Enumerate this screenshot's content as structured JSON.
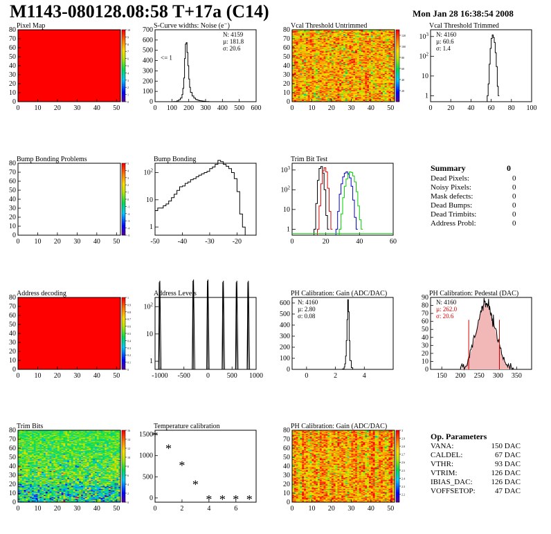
{
  "header": {
    "title": "M1143-080128.08:58 T+17a (C14)",
    "date": "Mon Jan 28 16:38:54 2008"
  },
  "summary": {
    "title": "Summary",
    "value": "0",
    "rows": [
      {
        "label": "Dead Pixels:",
        "value": "0"
      },
      {
        "label": "Noisy Pixels:",
        "value": "0"
      },
      {
        "label": "Mask defects:",
        "value": "0"
      },
      {
        "label": "Dead Bumps:",
        "value": "0"
      },
      {
        "label": "Dead Trimbits:",
        "value": "0"
      },
      {
        "label": "Address Probl:",
        "value": "0"
      }
    ]
  },
  "op_parameters": {
    "title": "Op. Parameters",
    "rows": [
      {
        "label": "VANA:",
        "value": "150 DAC"
      },
      {
        "label": "CALDEL:",
        "value": "67 DAC"
      },
      {
        "label": "VTHR:",
        "value": "93 DAC"
      },
      {
        "label": "VTRIM:",
        "value": "126 DAC"
      },
      {
        "label": "IBIAS_DAC:",
        "value": "126 DAC"
      },
      {
        "label": "VOFFSETOP:",
        "value": "47 DAC"
      }
    ]
  },
  "chart_data": [
    {
      "id": "pixel-map",
      "type": "heatmap",
      "title": "Pixel Map",
      "xlim": [
        0,
        52
      ],
      "ylim": [
        0,
        80
      ],
      "xticks": [
        "0",
        "10",
        "20",
        "30",
        "40",
        "50"
      ],
      "yticks": [
        "0",
        "10",
        "20",
        "30",
        "40",
        "50",
        "60",
        "70",
        "80"
      ],
      "uniform_value": 10,
      "zlim": [
        0,
        10
      ],
      "palette": "rainbow",
      "zticks": [
        "0",
        "1",
        "2",
        "3",
        "4",
        "5",
        "6",
        "7",
        "8",
        "9",
        "10"
      ]
    },
    {
      "id": "scurve-noise",
      "type": "histogram",
      "title": "S-Curve widths: Noise (e⁻)",
      "xlim": [
        0,
        600
      ],
      "ylim": [
        0,
        700
      ],
      "xticks": [
        "0",
        "100",
        "200",
        "300",
        "400",
        "500",
        "600"
      ],
      "yticks": [
        "0",
        "100",
        "200",
        "300",
        "400",
        "500",
        "600",
        "700"
      ],
      "stats": [
        {
          "text": "N: 4159"
        },
        {
          "text": "µ: 181.8"
        },
        {
          "text": "σ: 20.6"
        }
      ],
      "annotation": "<= 1",
      "x": [
        80,
        110,
        130,
        140,
        150,
        160,
        165,
        170,
        175,
        180,
        185,
        190,
        195,
        200,
        205,
        210,
        220,
        230,
        240,
        250,
        260,
        270,
        280,
        290,
        300,
        320
      ],
      "y": [
        0,
        2,
        8,
        18,
        35,
        70,
        130,
        230,
        420,
        560,
        575,
        480,
        350,
        220,
        140,
        90,
        55,
        35,
        22,
        15,
        10,
        8,
        6,
        4,
        2,
        0
      ]
    },
    {
      "id": "vcal-untrimmed",
      "type": "heatmap",
      "title": "Vcal Threshold Untrimmed",
      "xlim": [
        0,
        52
      ],
      "ylim": [
        0,
        80
      ],
      "xticks": [
        "0",
        "10",
        "20",
        "30",
        "40",
        "50"
      ],
      "yticks": [
        "0",
        "10",
        "20",
        "30",
        "40",
        "50",
        "60",
        "70",
        "80"
      ],
      "zlim": [
        0,
        130
      ],
      "palette": "rainbow",
      "zticks": [
        "20",
        "40",
        "60",
        "80",
        "100",
        "120"
      ],
      "mean": 100,
      "spread": 18
    },
    {
      "id": "vcal-trimmed",
      "type": "histogram",
      "title": "Vcal Threshold Trimmed",
      "xlim": [
        0,
        100
      ],
      "yscale": "log",
      "xticks": [
        "0",
        "20",
        "40",
        "60",
        "80",
        "100"
      ],
      "yticks": [
        "1",
        "10",
        "10²",
        "10³"
      ],
      "stats": [
        {
          "text": "N: 4160"
        },
        {
          "text": "µ: 60.6"
        },
        {
          "text": "σ:  1.4"
        }
      ],
      "x": [
        56,
        57,
        58,
        59,
        60,
        61,
        62,
        63,
        64,
        65,
        66,
        67
      ],
      "y": [
        1,
        4,
        40,
        250,
        800,
        1200,
        900,
        500,
        150,
        30,
        3,
        1
      ]
    },
    {
      "id": "bump-bonding-problems",
      "type": "heatmap",
      "title": "Bump Bonding Problems",
      "xlim": [
        0,
        52
      ],
      "ylim": [
        0,
        80
      ],
      "xticks": [
        "0",
        "10",
        "20",
        "30",
        "40",
        "50"
      ],
      "yticks": [
        "0",
        "10",
        "20",
        "30",
        "40",
        "50",
        "60",
        "70",
        "80"
      ],
      "empty": true,
      "zlim": [
        -5,
        5
      ],
      "palette": "rainbow",
      "zticks": [
        "-5",
        "-4",
        "-3",
        "-2",
        "-1",
        "0",
        "1",
        "2",
        "3",
        "4",
        "5"
      ]
    },
    {
      "id": "bump-bonding",
      "type": "histogram",
      "title": "Bump Bonding",
      "xlim": [
        -50,
        -13
      ],
      "yscale": "log",
      "xticks": [
        "-50",
        "-40",
        "-30",
        "-20"
      ],
      "yticks": [
        "1",
        "10",
        "10²"
      ],
      "x": [
        -50,
        -49,
        -48,
        -47,
        -46,
        -45,
        -44,
        -43,
        -42,
        -41,
        -40,
        -39,
        -38,
        -37,
        -36,
        -35,
        -34,
        -33,
        -32,
        -31,
        -30,
        -29,
        -28,
        -27,
        -26,
        -25,
        -24,
        -23,
        -22,
        -21,
        -20,
        -19,
        -18,
        -17
      ],
      "y": [
        4,
        5,
        5,
        6,
        7,
        9,
        12,
        16,
        22,
        30,
        32,
        40,
        45,
        55,
        60,
        70,
        80,
        90,
        100,
        110,
        140,
        160,
        200,
        280,
        250,
        200,
        170,
        140,
        100,
        60,
        20,
        3,
        1,
        0.5
      ]
    },
    {
      "id": "trim-bit-test",
      "type": "line",
      "title": "Trim Bit Test",
      "xlim": [
        0,
        60
      ],
      "yscale": "log",
      "xticks": [
        "0",
        "20",
        "40",
        "60"
      ],
      "yticks": [
        "1",
        "10",
        "10²",
        "10³"
      ],
      "series": [
        {
          "color": "#000000",
          "x": [
            13,
            14,
            15,
            16,
            17,
            18,
            19,
            20,
            21
          ],
          "y": [
            1,
            20,
            300,
            1200,
            1500,
            700,
            100,
            5,
            1
          ]
        },
        {
          "color": "#dd0000",
          "x": [
            15,
            16,
            17,
            18,
            19,
            20,
            21,
            22,
            23
          ],
          "y": [
            1,
            15,
            200,
            900,
            1300,
            800,
            120,
            8,
            1
          ]
        },
        {
          "color": "#0000cc",
          "x": [
            26,
            27,
            28,
            29,
            30,
            31,
            32,
            33,
            34,
            35,
            36,
            37,
            38
          ],
          "y": [
            1,
            8,
            60,
            200,
            450,
            700,
            800,
            650,
            400,
            150,
            30,
            4,
            1
          ]
        },
        {
          "color": "#00cc00",
          "x": [
            28,
            29,
            30,
            31,
            32,
            33,
            34,
            35,
            36,
            37,
            38,
            39,
            40,
            41
          ],
          "y": [
            1,
            6,
            40,
            150,
            350,
            600,
            800,
            750,
            500,
            250,
            80,
            15,
            3,
            1
          ]
        }
      ]
    },
    {
      "id": "address-decoding",
      "type": "heatmap",
      "title": "Address decoding",
      "xlim": [
        0,
        52
      ],
      "ylim": [
        0,
        80
      ],
      "xticks": [
        "0",
        "10",
        "20",
        "30",
        "40",
        "50"
      ],
      "yticks": [
        "0",
        "10",
        "20",
        "30",
        "40",
        "50",
        "60",
        "70",
        "80"
      ],
      "uniform_value": 1,
      "zlim": [
        0,
        1
      ],
      "palette": "rainbow",
      "zticks": [
        "0",
        "0.1",
        "0.2",
        "0.3",
        "0.4",
        "0.5",
        "0.6",
        "0.7",
        "0.8",
        "0.9",
        "1"
      ]
    },
    {
      "id": "address-levels",
      "type": "histogram",
      "title": "Address Levels",
      "xlim": [
        -1100,
        1000
      ],
      "yscale": "log",
      "xticks": [
        "-1000",
        "-500",
        "0",
        "500",
        "1000"
      ],
      "yticks": [
        "1",
        "10",
        "10²"
      ],
      "peaks": [
        {
          "x": -1000,
          "h": 900
        },
        {
          "x": -300,
          "h": 1000
        },
        {
          "x": 0,
          "h": 1000
        },
        {
          "x": 320,
          "h": 900
        },
        {
          "x": 600,
          "h": 900
        },
        {
          "x": 840,
          "h": 900
        }
      ]
    },
    {
      "id": "ph-gain",
      "type": "histogram",
      "title": "PH Calibration: Gain (ADC/DAC)",
      "xlim": [
        -1,
        6
      ],
      "ylim": [
        0,
        650
      ],
      "xticks": [
        "0",
        "2",
        "4"
      ],
      "yticks": [
        "0",
        "100",
        "200",
        "300",
        "400",
        "500",
        "600"
      ],
      "stats": [
        {
          "text": "N: 4160"
        },
        {
          "text": "µ: 2.80"
        },
        {
          "text": "σ: 0.08"
        }
      ],
      "x": [
        2.4,
        2.5,
        2.6,
        2.65,
        2.7,
        2.75,
        2.8,
        2.85,
        2.9,
        2.95,
        3.0,
        3.1,
        3.2
      ],
      "y": [
        0,
        5,
        20,
        50,
        120,
        260,
        450,
        630,
        520,
        260,
        80,
        15,
        0
      ]
    },
    {
      "id": "ph-pedestal",
      "type": "histogram",
      "title": "PH Calibration: Pedestal (DAC)",
      "xlim": [
        120,
        390
      ],
      "ylim": [
        0,
        90
      ],
      "xticks": [
        "150",
        "200",
        "250",
        "300",
        "350"
      ],
      "yticks": [
        "0",
        "10",
        "20",
        "30",
        "40",
        "50",
        "60",
        "70",
        "80",
        "90"
      ],
      "stats": [
        {
          "text": "N: 4160",
          "color": "#000000"
        },
        {
          "text": "µ: 262.0",
          "color": "#dd0000"
        },
        {
          "text": "σ: 20.6",
          "color": "#dd0000"
        }
      ],
      "cutlines": [
        222,
        304
      ],
      "x": [
        200,
        210,
        220,
        230,
        240,
        250,
        255,
        260,
        265,
        270,
        275,
        280,
        285,
        290,
        300,
        310,
        320,
        330,
        340
      ],
      "y": [
        0,
        3,
        10,
        25,
        45,
        65,
        72,
        80,
        85,
        78,
        82,
        70,
        62,
        55,
        35,
        20,
        8,
        3,
        0
      ]
    },
    {
      "id": "trim-bits",
      "type": "heatmap",
      "title": "Trim Bits",
      "xlim": [
        0,
        52
      ],
      "ylim": [
        0,
        80
      ],
      "xticks": [
        "0",
        "10",
        "20",
        "30",
        "40",
        "50"
      ],
      "yticks": [
        "0",
        "10",
        "20",
        "30",
        "40",
        "50",
        "60",
        "70",
        "80"
      ],
      "zlim": [
        0,
        16
      ],
      "palette": "rainbow",
      "zticks": [
        "0",
        "2",
        "4",
        "6",
        "8",
        "10",
        "12",
        "14",
        "16"
      ],
      "mean": 8,
      "spread": 2
    },
    {
      "id": "temperature-calibration",
      "type": "scatter",
      "title": "Temperature calibration",
      "xlim": [
        0,
        7.5
      ],
      "ylim": [
        -100,
        1600
      ],
      "xticks": [
        "0",
        "2",
        "4",
        "6"
      ],
      "yticks": [
        "0",
        "500",
        "1000",
        "1500"
      ],
      "x": [
        0,
        1,
        2,
        3,
        4,
        5,
        6,
        7
      ],
      "y": [
        1500,
        1200,
        800,
        350,
        0,
        0,
        0,
        0
      ]
    },
    {
      "id": "ph-gain-map",
      "type": "heatmap",
      "title": "PH Calibration: Gain (ADC/DAC)",
      "xlim": [
        0,
        52
      ],
      "ylim": [
        0,
        80
      ],
      "xticks": [
        "0",
        "10",
        "20",
        "30",
        "40",
        "50"
      ],
      "yticks": [
        "0",
        "10",
        "20",
        "30",
        "40",
        "50",
        "60",
        "70",
        "80"
      ],
      "zlim": [
        2.1,
        3.0
      ],
      "palette": "rainbow",
      "zticks": [
        "2.2",
        "2.3",
        "2.4",
        "2.5",
        "2.6",
        "2.7",
        "2.8",
        "2.9",
        "3"
      ],
      "mean": 2.8,
      "spread": 0.12
    }
  ]
}
